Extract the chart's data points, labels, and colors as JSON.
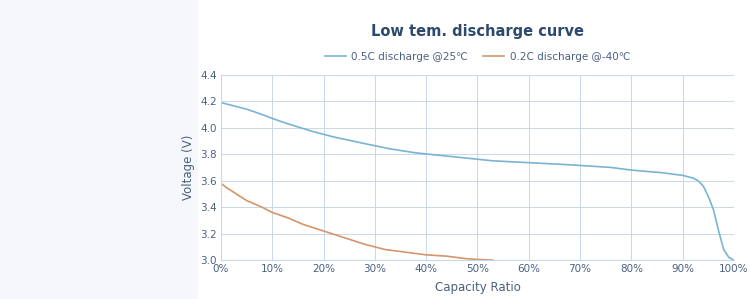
{
  "title": "Low tem. discharge curve",
  "xlabel": "Capacity Ratio",
  "ylabel": "Voltage (V)",
  "title_color": "#2d4a6e",
  "axis_label_color": "#4a6080",
  "tick_color": "#4a6080",
  "background_color": "#f5f7fa",
  "panel_color": "#ffffff",
  "grid_color": "#c8d8e8",
  "ylim": [
    3.0,
    4.4
  ],
  "xlim": [
    0.0,
    1.0
  ],
  "yticks": [
    3.0,
    3.2,
    3.4,
    3.6,
    3.8,
    4.0,
    4.2,
    4.4
  ],
  "xticks": [
    0.0,
    0.1,
    0.2,
    0.3,
    0.4,
    0.5,
    0.6,
    0.7,
    0.8,
    0.9,
    1.0
  ],
  "legend_labels": [
    "0.5C discharge @25℃",
    "0.2C discharge @-40℃"
  ],
  "line1_color": "#7ab3d3",
  "line2_color": "#d4956a",
  "line1_x": [
    0.0,
    0.01,
    0.03,
    0.05,
    0.08,
    0.1,
    0.13,
    0.18,
    0.22,
    0.28,
    0.33,
    0.38,
    0.43,
    0.48,
    0.53,
    0.58,
    0.63,
    0.68,
    0.72,
    0.76,
    0.8,
    0.83,
    0.86,
    0.88,
    0.9,
    0.91,
    0.92,
    0.93,
    0.94,
    0.95,
    0.96,
    0.97,
    0.975,
    0.98,
    0.99,
    1.0
  ],
  "line1_y": [
    4.19,
    4.18,
    4.16,
    4.14,
    4.1,
    4.07,
    4.03,
    3.97,
    3.93,
    3.88,
    3.84,
    3.81,
    3.79,
    3.77,
    3.75,
    3.74,
    3.73,
    3.72,
    3.71,
    3.7,
    3.68,
    3.67,
    3.66,
    3.65,
    3.64,
    3.63,
    3.62,
    3.6,
    3.56,
    3.48,
    3.38,
    3.22,
    3.15,
    3.08,
    3.02,
    3.0
  ],
  "line2_x": [
    0.0,
    0.01,
    0.03,
    0.05,
    0.08,
    0.1,
    0.13,
    0.16,
    0.2,
    0.24,
    0.28,
    0.32,
    0.36,
    0.4,
    0.44,
    0.48,
    0.5,
    0.52,
    0.53
  ],
  "line2_y": [
    3.58,
    3.55,
    3.5,
    3.45,
    3.4,
    3.36,
    3.32,
    3.27,
    3.22,
    3.17,
    3.12,
    3.08,
    3.06,
    3.04,
    3.03,
    3.01,
    3.005,
    3.002,
    3.0
  ]
}
